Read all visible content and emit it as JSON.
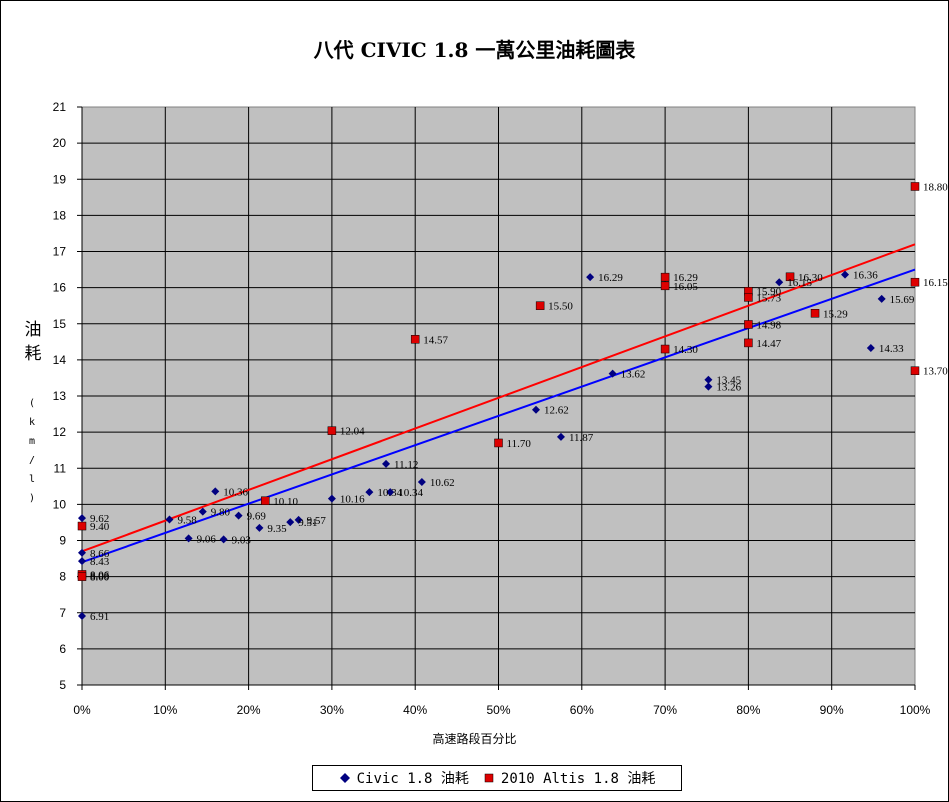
{
  "chart_data": {
    "type": "scatter",
    "title": "八代 CIVIC 1.8 一萬公里油耗圖表",
    "xlabel": "高速路段百分比",
    "ylabel": "油耗",
    "ylabel_unit": "(km/l)",
    "xlim": [
      0,
      100
    ],
    "ylim": [
      5,
      21
    ],
    "x_ticks": [
      "0%",
      "10%",
      "20%",
      "30%",
      "40%",
      "50%",
      "60%",
      "70%",
      "80%",
      "90%",
      "100%"
    ],
    "y_ticks": [
      "5",
      "6",
      "7",
      "8",
      "9",
      "10",
      "11",
      "12",
      "13",
      "14",
      "15",
      "16",
      "17",
      "18",
      "19",
      "20",
      "21"
    ],
    "grid": true,
    "legend_position": "bottom",
    "series": [
      {
        "name": "Civic 1.8 油耗",
        "color": "#000080",
        "marker": "diamond",
        "points": [
          {
            "x": 0,
            "y": 6.91,
            "label": "6.91"
          },
          {
            "x": 0,
            "y": 8.03,
            "label": "8.03"
          },
          {
            "x": 0,
            "y": 8.43,
            "label": "8.43"
          },
          {
            "x": 0,
            "y": 8.66,
            "label": "8.66"
          },
          {
            "x": 0,
            "y": 9.62,
            "label": "9.62"
          },
          {
            "x": 10.5,
            "y": 9.58,
            "label": "9.58"
          },
          {
            "x": 12.8,
            "y": 9.06,
            "label": "9.06"
          },
          {
            "x": 14.5,
            "y": 9.8,
            "label": "9.80"
          },
          {
            "x": 16.0,
            "y": 10.36,
            "label": "10.36"
          },
          {
            "x": 17.0,
            "y": 9.03,
            "label": "9.03"
          },
          {
            "x": 18.8,
            "y": 9.69,
            "label": "9.69"
          },
          {
            "x": 21.3,
            "y": 9.35,
            "label": "9.35"
          },
          {
            "x": 25.0,
            "y": 9.51,
            "label": "9.51"
          },
          {
            "x": 26.0,
            "y": 9.57,
            "label": "9.57"
          },
          {
            "x": 30.0,
            "y": 10.16,
            "label": "10.16"
          },
          {
            "x": 34.5,
            "y": 10.34,
            "label": "10.34"
          },
          {
            "x": 36.5,
            "y": 11.12,
            "label": "11.12"
          },
          {
            "x": 37.0,
            "y": 10.34,
            "label": "10.34"
          },
          {
            "x": 40.8,
            "y": 10.62,
            "label": "10.62"
          },
          {
            "x": 54.5,
            "y": 12.62,
            "label": "12.62"
          },
          {
            "x": 57.5,
            "y": 11.87,
            "label": "11.87"
          },
          {
            "x": 61.0,
            "y": 16.29,
            "label": "16.29"
          },
          {
            "x": 63.7,
            "y": 13.62,
            "label": "13.62"
          },
          {
            "x": 75.2,
            "y": 13.45,
            "label": "13.45"
          },
          {
            "x": 75.2,
            "y": 13.26,
            "label": "13.26"
          },
          {
            "x": 83.7,
            "y": 16.15,
            "label": "16.15"
          },
          {
            "x": 91.6,
            "y": 16.36,
            "label": "16.36"
          },
          {
            "x": 94.7,
            "y": 14.33,
            "label": "14.33"
          },
          {
            "x": 96.0,
            "y": 15.69,
            "label": "15.69"
          }
        ],
        "trendline": {
          "x": [
            0,
            100
          ],
          "y": [
            8.4,
            16.5
          ]
        }
      },
      {
        "name": "2010 Altis 1.8 油耗",
        "color": "#dd0000",
        "marker": "square",
        "points": [
          {
            "x": 0,
            "y": 9.4,
            "label": "9.40"
          },
          {
            "x": 0,
            "y": 8.06,
            "label": "8.06"
          },
          {
            "x": 0,
            "y": 8.0,
            "label": "8.00"
          },
          {
            "x": 22.0,
            "y": 10.1,
            "label": "10.10"
          },
          {
            "x": 30.0,
            "y": 12.04,
            "label": "12.04"
          },
          {
            "x": 40.0,
            "y": 14.57,
            "label": "14.57"
          },
          {
            "x": 50.0,
            "y": 11.7,
            "label": "11.70"
          },
          {
            "x": 55.0,
            "y": 15.5,
            "label": "15.50"
          },
          {
            "x": 70.0,
            "y": 16.29,
            "label": "16.29"
          },
          {
            "x": 70.0,
            "y": 16.05,
            "label": "16.05"
          },
          {
            "x": 70.0,
            "y": 14.3,
            "label": "14.30"
          },
          {
            "x": 80.0,
            "y": 15.9,
            "label": "15.90"
          },
          {
            "x": 80.0,
            "y": 15.73,
            "label": "15.73"
          },
          {
            "x": 80.0,
            "y": 14.98,
            "label": "14.98"
          },
          {
            "x": 80.0,
            "y": 14.47,
            "label": "14.47"
          },
          {
            "x": 85.0,
            "y": 16.3,
            "label": "16.30"
          },
          {
            "x": 88.0,
            "y": 15.29,
            "label": "15.29"
          },
          {
            "x": 100.0,
            "y": 18.8,
            "label": "18.80"
          },
          {
            "x": 100.0,
            "y": 16.15,
            "label": "16.15"
          },
          {
            "x": 100.0,
            "y": 13.7,
            "label": "13.70"
          }
        ],
        "trendline": {
          "x": [
            0,
            100
          ],
          "y": [
            8.7,
            17.2
          ]
        }
      }
    ]
  }
}
